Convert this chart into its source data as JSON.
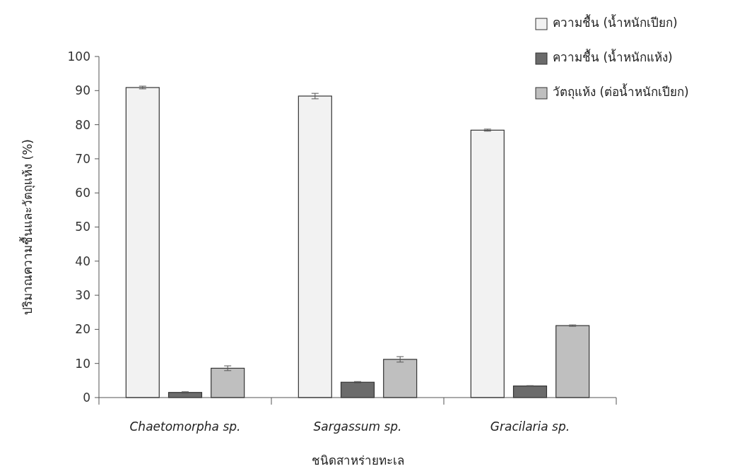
{
  "chart_data": {
    "type": "bar",
    "xlabel": "ชนิดสาหร่ายทะเล",
    "ylabel": "ปริมาณความชื้นและวัตถุแห้ง (%)",
    "categories": [
      "Chaetomorpha sp.",
      "Sargassum sp.",
      "Gracilaria sp."
    ],
    "series": [
      {
        "name": "ความชื้น (น้ำหนักเปียก)",
        "color": "#f2f2f2",
        "values": [
          90.9,
          88.4,
          78.4
        ],
        "errors": [
          0.4,
          0.8,
          0.3
        ]
      },
      {
        "name": "ความชื้น (น้ำหนักแห้ง)",
        "color": "#6b6b6b",
        "values": [
          1.5,
          4.5,
          3.4
        ],
        "errors": [
          0.2,
          0.2,
          0.1
        ]
      },
      {
        "name": "วัตถุแห้ง  (ต่อน้ำหนักเปียก)",
        "color": "#bfbfbf",
        "values": [
          8.6,
          11.2,
          21.1
        ],
        "errors": [
          0.7,
          0.8,
          0.2
        ]
      }
    ],
    "ylim": [
      0,
      100
    ],
    "yticks": [
      0,
      10,
      20,
      30,
      40,
      50,
      60,
      70,
      80,
      90,
      100
    ],
    "grid": false,
    "legend": "top right"
  }
}
